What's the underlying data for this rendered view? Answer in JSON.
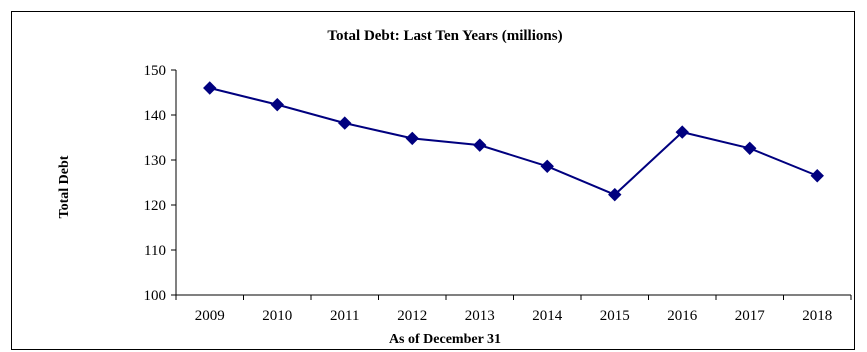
{
  "chart_data": {
    "type": "line",
    "title": "Total Debt: Last Ten Years (millions)",
    "xlabel": "As of December 31",
    "ylabel": "Total Debt",
    "categories": [
      "2009",
      "2010",
      "2011",
      "2012",
      "2013",
      "2014",
      "2015",
      "2016",
      "2017",
      "2018"
    ],
    "series": [
      {
        "values": [
          146,
          142.3,
          138.2,
          134.8,
          133.3,
          128.6,
          122.3,
          136.2,
          132.6,
          126.5
        ]
      }
    ],
    "ylim": [
      100,
      150
    ],
    "yticks": [
      "100",
      "110",
      "120",
      "130",
      "140",
      "150"
    ],
    "grid": false,
    "marker": "diamond",
    "line_color": "#00007f"
  }
}
